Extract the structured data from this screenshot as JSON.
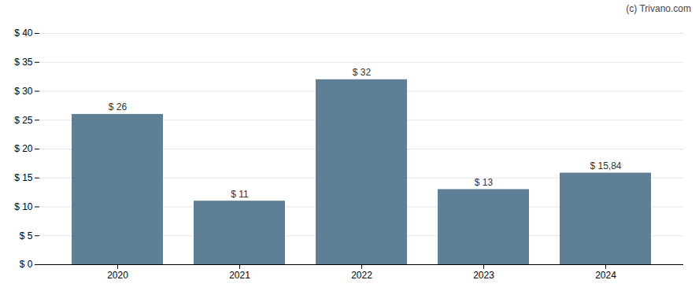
{
  "chart_data": {
    "type": "bar",
    "categories": [
      "2020",
      "2021",
      "2022",
      "2023",
      "2024"
    ],
    "values": [
      26,
      11,
      32,
      13,
      15.84
    ],
    "value_labels": [
      "$ 26",
      "$ 11",
      "$ 32",
      "$ 13",
      "$ 15,84"
    ],
    "data_labels": true,
    "color": "#5f7f96",
    "ylim": [
      0,
      40
    ],
    "yticks": [
      {
        "value": 0,
        "label": "$ 0"
      },
      {
        "value": 5,
        "label": "$ 5"
      },
      {
        "value": 10,
        "label": "$ 10"
      },
      {
        "value": 15,
        "label": "$ 15"
      },
      {
        "value": 20,
        "label": "$ 20"
      },
      {
        "value": 25,
        "label": "$ 25"
      },
      {
        "value": 30,
        "label": "$ 30"
      },
      {
        "value": 35,
        "label": "$ 35"
      },
      {
        "value": 40,
        "label": "$ 40"
      }
    ],
    "grid": true,
    "annotations": [
      "(c) Trivano.com"
    ]
  }
}
